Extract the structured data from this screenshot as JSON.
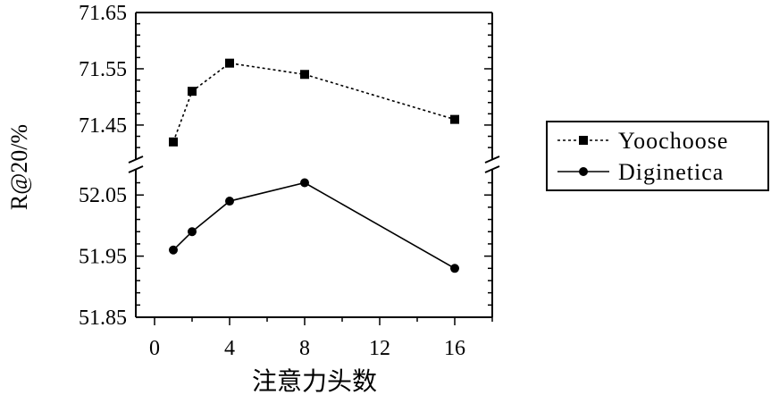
{
  "chart_data": {
    "type": "line",
    "xlabel": "注意力头数",
    "ylabel": "R@20/%",
    "x_ticks": [
      "0",
      "4",
      "8",
      "12",
      "16"
    ],
    "xlim": [
      -1,
      18
    ],
    "broken_y_axis": true,
    "y_upper": {
      "ylim": [
        71.38,
        71.65
      ],
      "ticks": [
        "71.65",
        "71.55",
        "71.45"
      ]
    },
    "y_lower": {
      "ylim": [
        51.85,
        52.1
      ],
      "ticks": [
        "52.05",
        "51.95",
        "51.85"
      ]
    },
    "legend": "right",
    "series": [
      {
        "name": "Yoochoose",
        "style": "dotted",
        "marker": "square",
        "x": [
          1,
          2,
          4,
          8,
          16
        ],
        "values": [
          71.42,
          71.51,
          71.56,
          71.54,
          71.46
        ]
      },
      {
        "name": "Diginetica",
        "style": "solid",
        "marker": "circle",
        "x": [
          1,
          2,
          4,
          8,
          16
        ],
        "values": [
          51.96,
          51.99,
          52.04,
          52.07,
          51.93
        ]
      }
    ]
  }
}
